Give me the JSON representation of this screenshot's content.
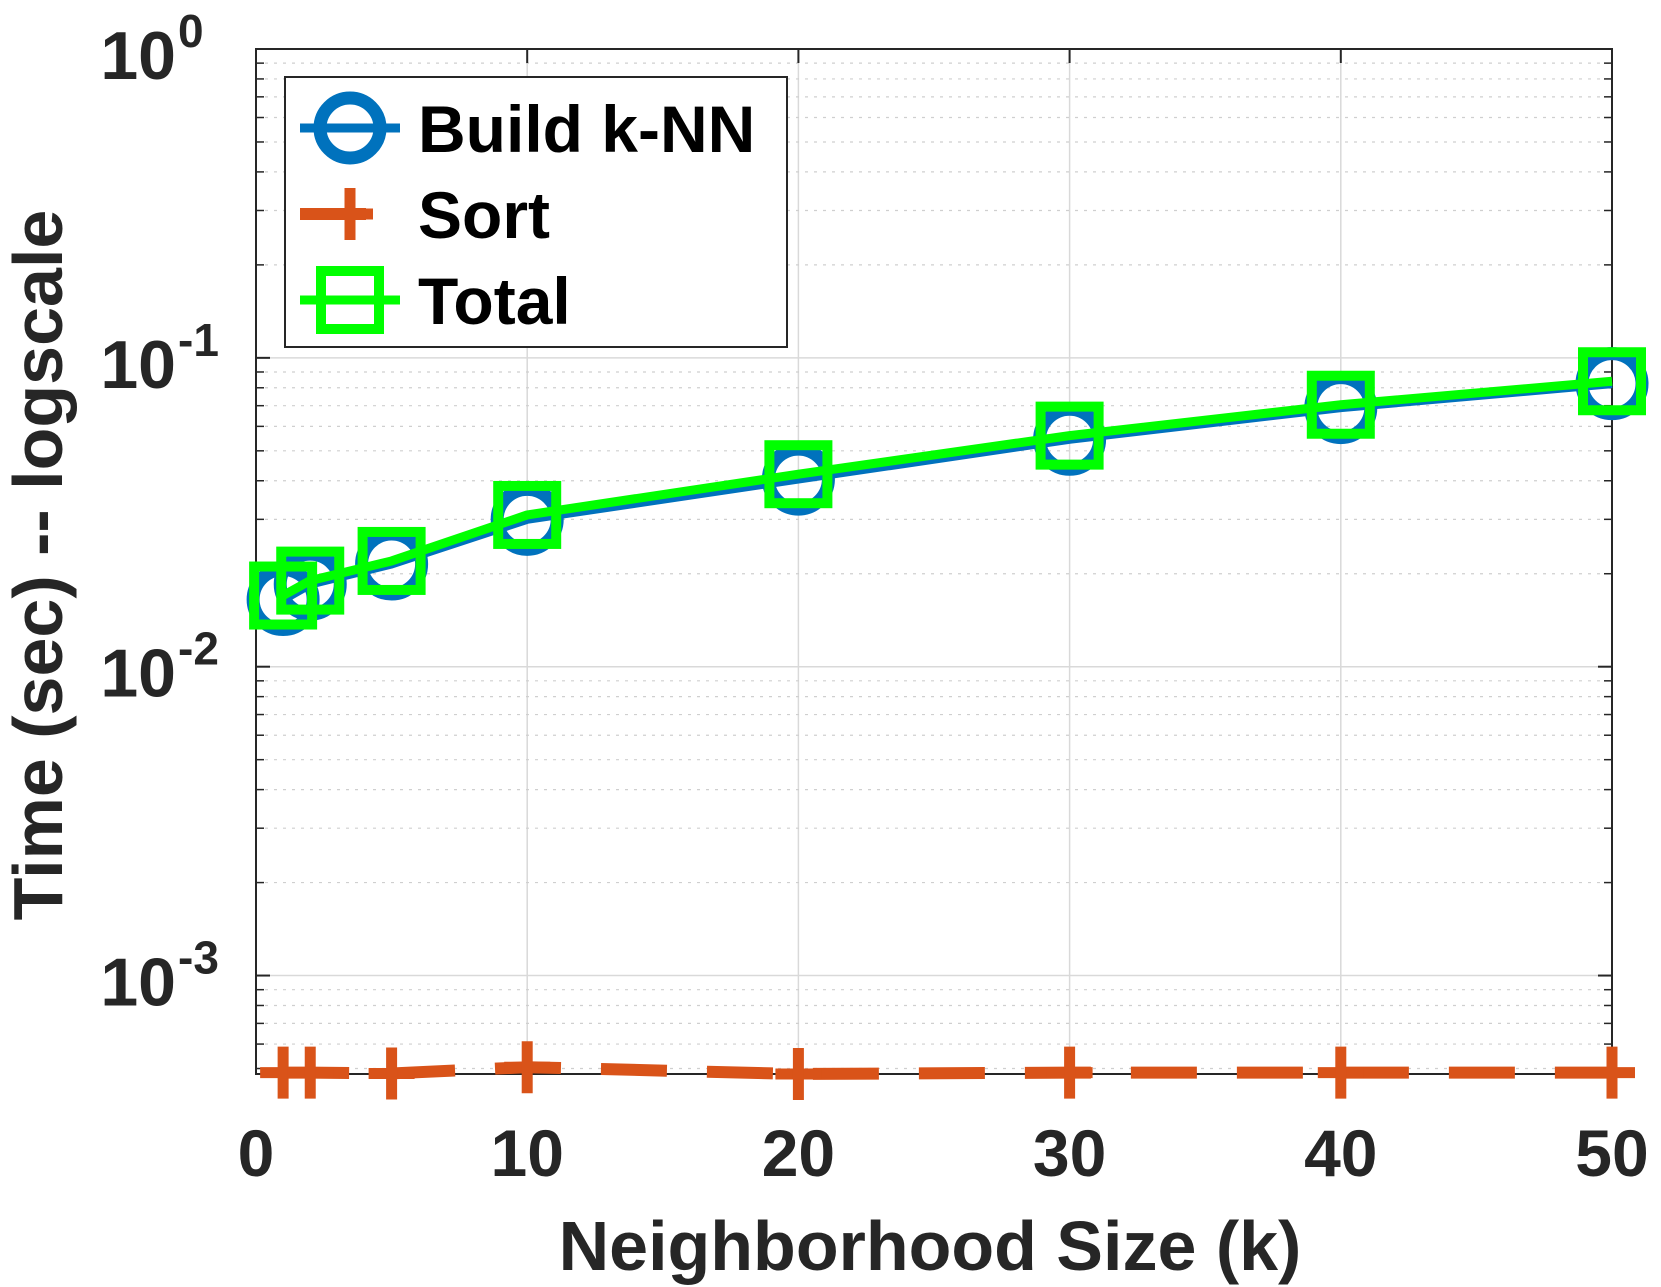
{
  "chart_data": {
    "type": "line",
    "xlabel": "Neighborhood Size (k)",
    "ylabel": "Time (sec) -- logscale",
    "x_scale": "linear",
    "y_scale": "log",
    "xlim": [
      0,
      50
    ],
    "ylim": [
      0.00048,
      1
    ],
    "x_ticks": [
      0,
      10,
      20,
      30,
      40,
      50
    ],
    "x_tick_labels": [
      "0",
      "10",
      "20",
      "30",
      "40",
      "50"
    ],
    "y_ticks": [
      0.001,
      0.01,
      0.1,
      1
    ],
    "y_tick_labels": [
      {
        "base": "10",
        "exp": "-3"
      },
      {
        "base": "10",
        "exp": "-2"
      },
      {
        "base": "10",
        "exp": "-1"
      },
      {
        "base": "10",
        "exp": "0"
      }
    ],
    "grid": true,
    "minor_grid": true,
    "legend_position": "top-left",
    "series": [
      {
        "name": "Build k-NN",
        "color": "#0072BD",
        "marker": "circle",
        "line_style": "solid",
        "x": [
          1,
          2,
          5,
          10,
          20,
          30,
          40,
          50
        ],
        "y": [
          0.0165,
          0.0185,
          0.0215,
          0.03,
          0.0405,
          0.0545,
          0.069,
          0.0825
        ]
      },
      {
        "name": "Sort",
        "color": "#D95319",
        "marker": "plus",
        "line_style": "dashed",
        "x": [
          1,
          2,
          5,
          10,
          20,
          30,
          40,
          50
        ],
        "y": [
          0.000485,
          0.000485,
          0.000482,
          0.000505,
          0.00048,
          0.000485,
          0.000485,
          0.000485
        ]
      },
      {
        "name": "Total",
        "color": "#00FF00",
        "marker": "square",
        "line_style": "solid",
        "x": [
          1,
          2,
          5,
          10,
          20,
          30,
          40,
          50
        ],
        "y": [
          0.017,
          0.019,
          0.022,
          0.031,
          0.042,
          0.056,
          0.0705,
          0.084
        ]
      }
    ]
  }
}
